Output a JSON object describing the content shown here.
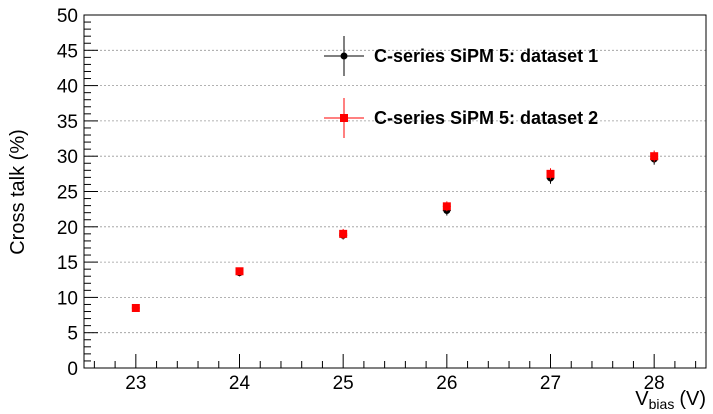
{
  "chart_data": {
    "type": "scatter",
    "ylabel": "Cross talk (%)",
    "xlabel_main": "V",
    "xlabel_sub": "bias",
    "xlabel_unit": "(V)",
    "xlim": [
      22.5,
      28.5
    ],
    "ylim": [
      0,
      50
    ],
    "x_ticks": [
      23,
      24,
      25,
      26,
      27,
      28
    ],
    "y_ticks": [
      0,
      5,
      10,
      15,
      20,
      25,
      30,
      35,
      40,
      45,
      50
    ],
    "grid": {
      "horizontal": true,
      "vertical": false,
      "style": "dotted"
    },
    "legend_position": "top-right",
    "series": [
      {
        "name": "C-series SiPM 5: dataset 1",
        "color": "#000000",
        "marker": "circle",
        "x": [
          24,
          25,
          26,
          27,
          28
        ],
        "y": [
          13.5,
          18.8,
          22.3,
          26.9,
          29.6
        ],
        "yerr": [
          0.5,
          0.6,
          0.7,
          0.8,
          0.8
        ]
      },
      {
        "name": "C-series SiPM 5: dataset 2",
        "color": "#ff0000",
        "marker": "square",
        "x": [
          23,
          24,
          25,
          26,
          27,
          28
        ],
        "y": [
          8.5,
          13.7,
          19.0,
          22.9,
          27.5,
          30.0
        ],
        "yerr": [
          0.3,
          0.5,
          0.7,
          0.7,
          0.8,
          0.8
        ]
      }
    ]
  }
}
